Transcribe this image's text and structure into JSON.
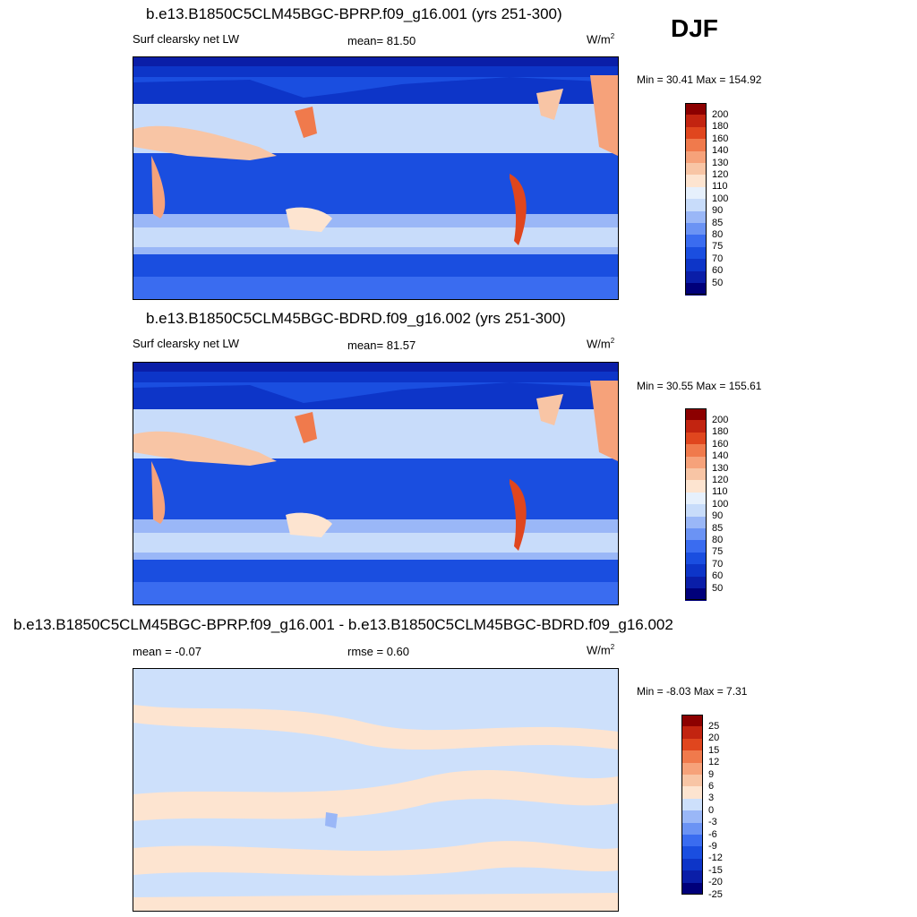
{
  "season": "DJF",
  "panels": [
    {
      "title": "b.e13.B1850C5CLM45BGC-BPRP.f09_g16.001 (yrs 251-300)",
      "left_label": "Surf clearsky net LW",
      "center_label": "mean=  81.50",
      "units_base": "W/m",
      "units_exp": "2",
      "minmax": "Min =  30.41 Max = 154.92"
    },
    {
      "title": "b.e13.B1850C5CLM45BGC-BDRD.f09_g16.002 (yrs 251-300)",
      "left_label": "Surf clearsky net LW",
      "center_label": "mean=  81.57",
      "units_base": "W/m",
      "units_exp": "2",
      "minmax": "Min =  30.55 Max = 155.61"
    },
    {
      "title": "b.e13.B1850C5CLM45BGC-BPRP.f09_g16.001 - b.e13.B1850C5CLM45BGC-BDRD.f09_g16.002",
      "left_label": "mean =  -0.07",
      "center_label": "rmse =   0.60",
      "units_base": "W/m",
      "units_exp": "2",
      "minmax": "Min =  -8.03 Max =   7.31"
    }
  ],
  "chart_data": [
    {
      "type": "heatmap",
      "title": "b.e13.B1850C5CLM45BGC-BPRP.f09_g16.001 (yrs 251-300)",
      "variable": "Surf clearsky net LW",
      "mean": 81.5,
      "min": 30.41,
      "max": 154.92,
      "colorbar_levels": [
        50,
        60,
        70,
        75,
        80,
        85,
        90,
        100,
        110,
        120,
        130,
        140,
        160,
        180,
        200
      ]
    },
    {
      "type": "heatmap",
      "title": "b.e13.B1850C5CLM45BGC-BDRD.f09_g16.002 (yrs 251-300)",
      "variable": "Surf clearsky net LW",
      "mean": 81.57,
      "min": 30.55,
      "max": 155.61,
      "colorbar_levels": [
        50,
        60,
        70,
        75,
        80,
        85,
        90,
        100,
        110,
        120,
        130,
        140,
        160,
        180,
        200
      ]
    },
    {
      "type": "heatmap",
      "title": "b.e13.B1850C5CLM45BGC-BPRP.f09_g16.001 - b.e13.B1850C5CLM45BGC-BDRD.f09_g16.002",
      "mean": -0.07,
      "rmse": 0.6,
      "min": -8.03,
      "max": 7.31,
      "colorbar_levels": [
        -25,
        -20,
        -15,
        -12,
        -9,
        -6,
        -3,
        0,
        3,
        6,
        9,
        12,
        15,
        20,
        25
      ]
    }
  ],
  "colors": {
    "abs_scale": [
      "#00007a",
      "#0a1ea8",
      "#0d35c8",
      "#1a4ee0",
      "#3a6cf0",
      "#6b93f4",
      "#9ab7f7",
      "#c8dcfa",
      "#e6f0fc",
      "#fde4d0",
      "#f8c5a5",
      "#f6a27a",
      "#f07a4c",
      "#e0461e",
      "#c22410",
      "#8c0000"
    ],
    "diff_scale": [
      "#00007a",
      "#0a1ea8",
      "#0d35c8",
      "#1a4ee0",
      "#3a6cf0",
      "#6b93f4",
      "#9ab7f7",
      "#cde0fb",
      "#fde4d0",
      "#f8c5a5",
      "#f6a27a",
      "#f07a4c",
      "#e0461e",
      "#c22410",
      "#8c0000"
    ]
  }
}
